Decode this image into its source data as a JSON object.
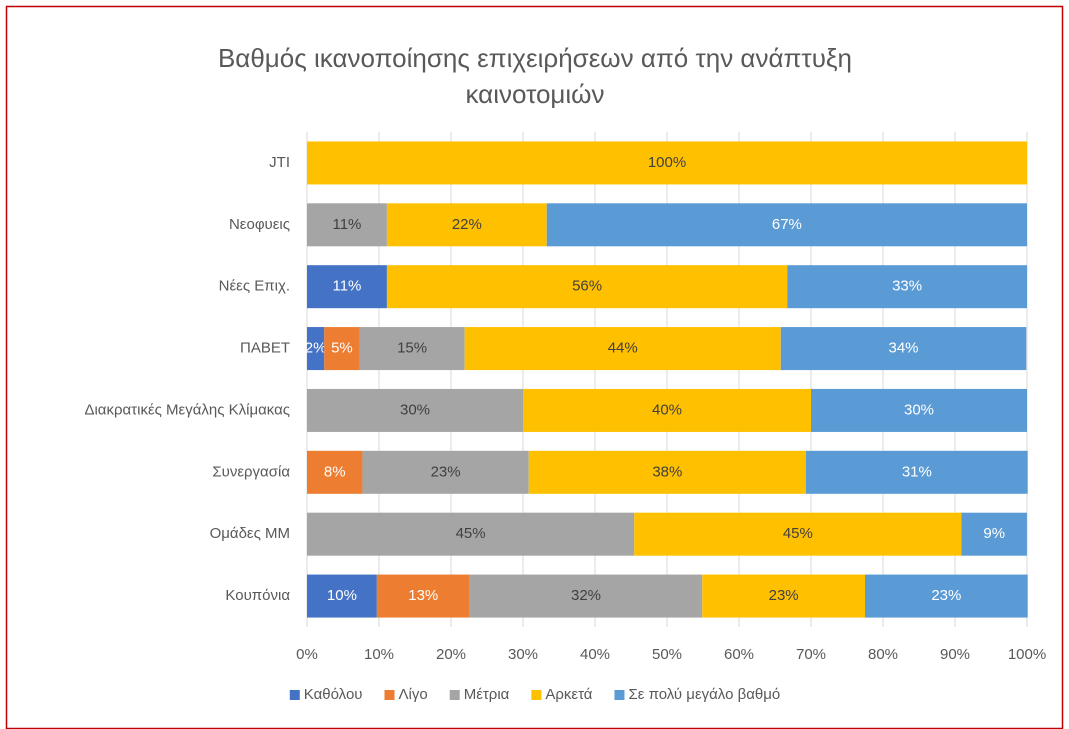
{
  "chart_data": {
    "type": "stacked_barh",
    "title": [
      "Βαθμός ικανοποίησης επιχειρήσεων από την ανάπτυξη",
      "καινοτομιών"
    ],
    "categories": [
      "JTI",
      "Νεοφυεις",
      "Νέες Επιχ.",
      "ΠΑΒΕΤ",
      "Διακρατικές Μεγάλης Κλίμακας",
      "Συνεργασία",
      "Ομάδες ΜΜ",
      "Κουπόνια"
    ],
    "series": [
      {
        "name": "Καθόλου",
        "color": "#4472c4",
        "values": [
          null,
          null,
          11.1,
          2.4,
          null,
          null,
          null,
          9.7
        ],
        "value_labels": [
          null,
          null,
          "11%",
          "2%",
          null,
          null,
          null,
          "10%"
        ]
      },
      {
        "name": "Λίγο",
        "color": "#ed7d31",
        "values": [
          null,
          null,
          null,
          4.9,
          null,
          7.7,
          null,
          12.9
        ],
        "value_labels": [
          null,
          null,
          null,
          "5%",
          null,
          "8%",
          null,
          "13%"
        ]
      },
      {
        "name": "Μέτρια",
        "color": "#a5a5a5",
        "values": [
          null,
          11.1,
          null,
          14.6,
          30,
          23.1,
          45.45,
          32.3
        ],
        "value_labels": [
          null,
          "11%",
          null,
          "15%",
          "30%",
          "23%",
          "45%",
          "32%"
        ]
      },
      {
        "name": "Αρκετά",
        "color": "#ffc000",
        "values": [
          100,
          22.2,
          55.6,
          43.9,
          40,
          38.5,
          45.45,
          22.6
        ],
        "value_labels": [
          "100%",
          "22%",
          "56%",
          "44%",
          "40%",
          "38%",
          "45%",
          "23%"
        ]
      },
      {
        "name": "Σε πολύ μεγάλο βαθμό",
        "color": "#5b9bd5",
        "values": [
          null,
          66.7,
          33.3,
          34.1,
          30,
          30.8,
          9.09,
          22.6
        ],
        "value_labels": [
          null,
          "67%",
          "33%",
          "34%",
          "30%",
          "31%",
          "9%",
          "23%"
        ]
      }
    ],
    "xlim": [
      0,
      100
    ],
    "xticks": [
      {
        "value": 0,
        "label": "0%"
      },
      {
        "value": 10,
        "label": "10%"
      },
      {
        "value": 20,
        "label": "20%"
      },
      {
        "value": 30,
        "label": "30%"
      },
      {
        "value": 40,
        "label": "40%"
      },
      {
        "value": 50,
        "label": "50%"
      },
      {
        "value": 60,
        "label": "60%"
      },
      {
        "value": 70,
        "label": "70%"
      },
      {
        "value": 80,
        "label": "80%"
      },
      {
        "value": 90,
        "label": "90%"
      },
      {
        "value": 100,
        "label": "100%"
      }
    ],
    "grid": true,
    "legend": "bottom"
  }
}
